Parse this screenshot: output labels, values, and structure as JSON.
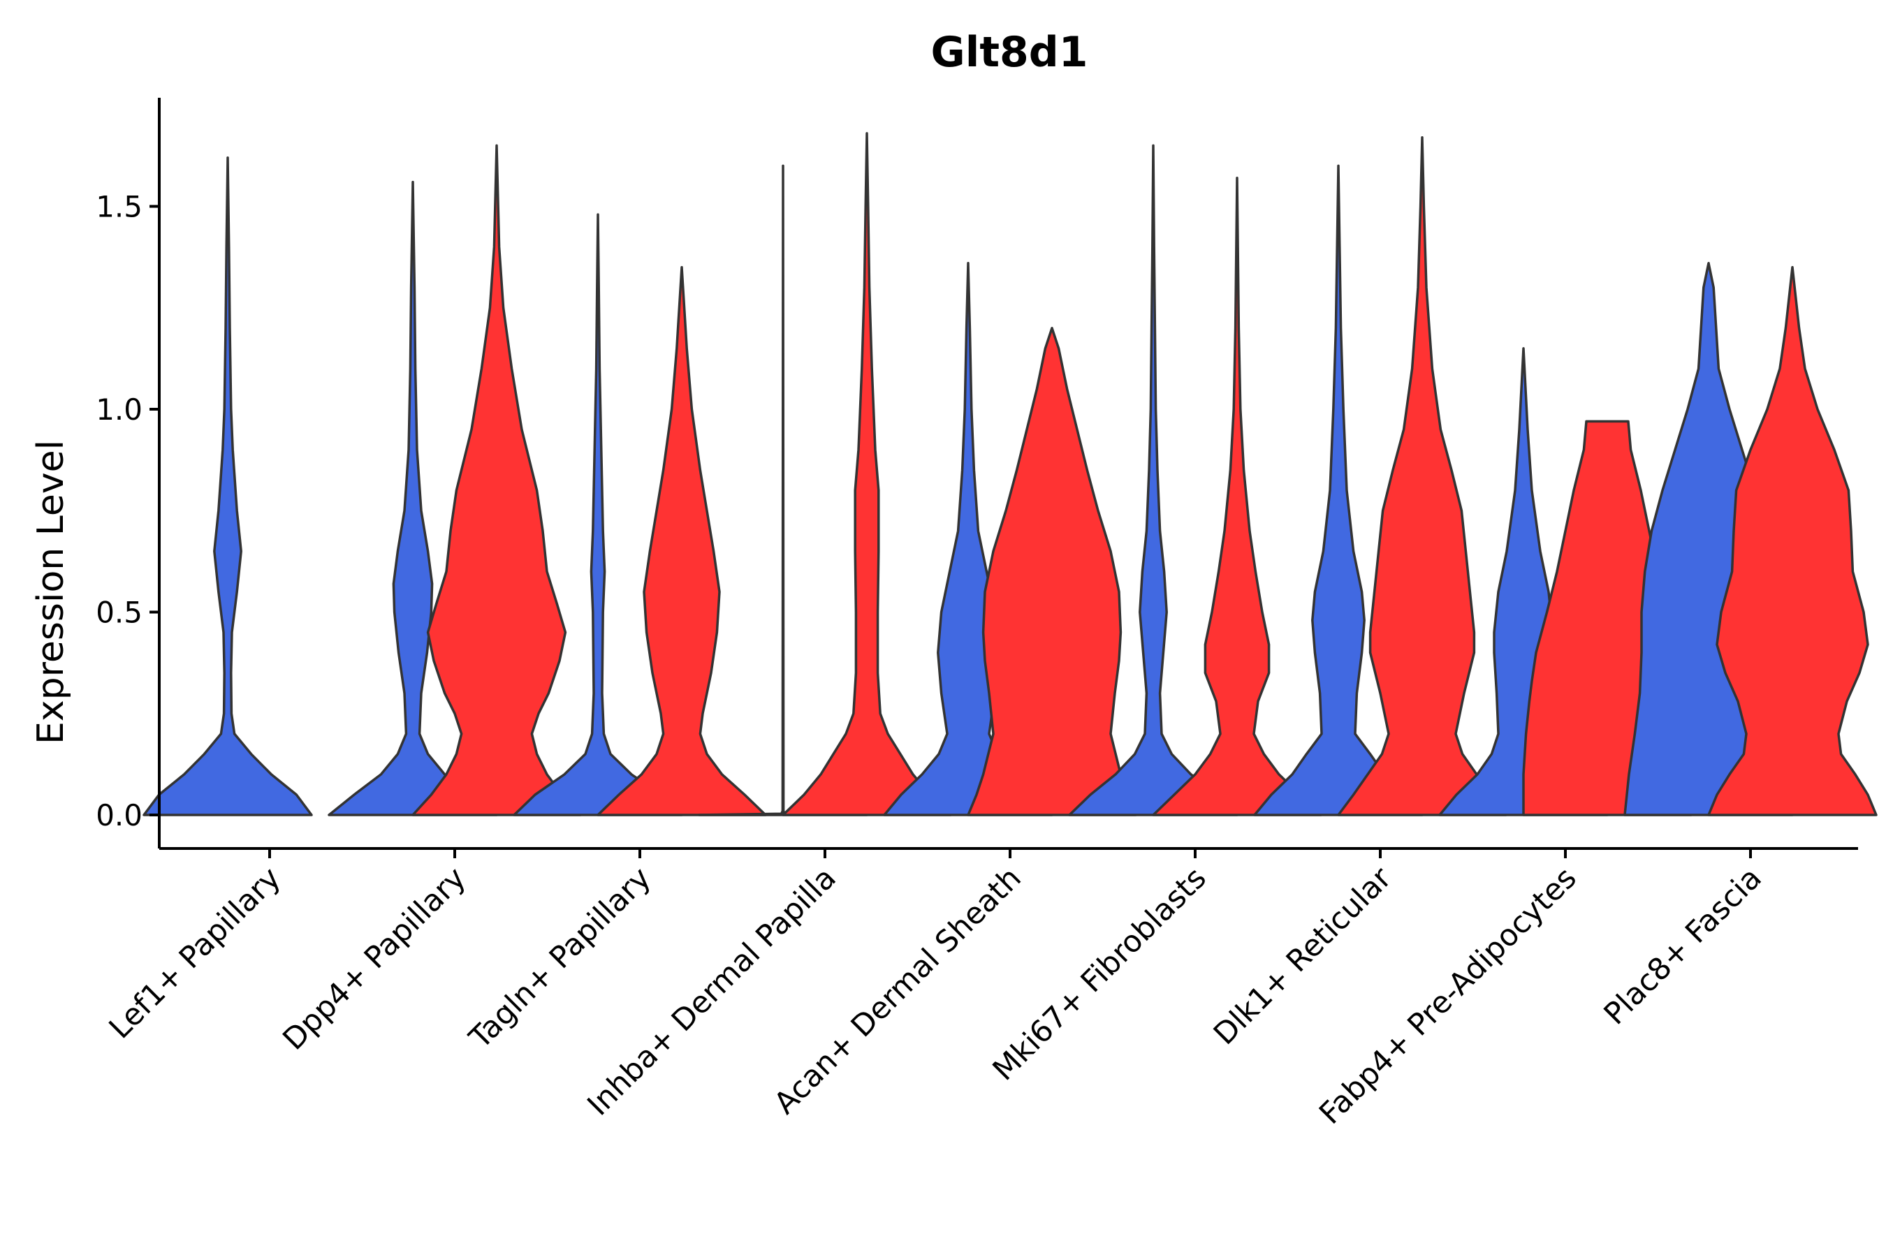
{
  "chart_data": {
    "type": "violin",
    "title": "Glt8d1",
    "xlabel": "",
    "ylabel": "Expression Level",
    "ylim": [
      -0.085,
      1.76
    ],
    "yticks": [
      0.0,
      0.5,
      1.0,
      1.5
    ],
    "ytick_labels": [
      "0.0",
      "0.5",
      "1.0",
      "1.5"
    ],
    "series_colors": {
      "group1": "#4169E1",
      "group2": "#FF3333"
    },
    "categories": [
      "Lef1+ Papillary",
      "Dpp4+ Papillary",
      "Tagln+ Papillary",
      "Inhba+ Dermal Papilla",
      "Acan+ Dermal Sheath",
      "Mki67+ Fibroblasts",
      "Dlk1+ Reticular",
      "Fabp4+ Pre-Adipocytes",
      "Plac8+ Fascia"
    ],
    "violins": [
      {
        "category": "Lef1+ Papillary",
        "group": "group1",
        "max": 1.62,
        "profile": [
          [
            0,
            1
          ],
          [
            0.05,
            0.82
          ],
          [
            0.1,
            0.52
          ],
          [
            0.15,
            0.28
          ],
          [
            0.2,
            0.08
          ],
          [
            0.25,
            0.045
          ],
          [
            0.35,
            0.04
          ],
          [
            0.45,
            0.05
          ],
          [
            0.55,
            0.11
          ],
          [
            0.65,
            0.16
          ],
          [
            0.75,
            0.11
          ],
          [
            0.9,
            0.06
          ],
          [
            1.0,
            0.04
          ],
          [
            1.2,
            0.025
          ],
          [
            1.4,
            0.015
          ],
          [
            1.62,
            0.0
          ]
        ]
      },
      {
        "category": "Dpp4+ Papillary",
        "group": "group1",
        "max": 1.56,
        "profile": [
          [
            0,
            1
          ],
          [
            0.05,
            0.7
          ],
          [
            0.1,
            0.38
          ],
          [
            0.15,
            0.18
          ],
          [
            0.2,
            0.08
          ],
          [
            0.3,
            0.1
          ],
          [
            0.4,
            0.17
          ],
          [
            0.5,
            0.22
          ],
          [
            0.57,
            0.23
          ],
          [
            0.65,
            0.18
          ],
          [
            0.75,
            0.1
          ],
          [
            0.9,
            0.05
          ],
          [
            1.1,
            0.03
          ],
          [
            1.3,
            0.02
          ],
          [
            1.56,
            0.0
          ]
        ]
      },
      {
        "category": "Dpp4+ Papillary",
        "group": "group2",
        "max": 1.65,
        "profile": [
          [
            0,
            1
          ],
          [
            0.05,
            0.78
          ],
          [
            0.1,
            0.6
          ],
          [
            0.15,
            0.48
          ],
          [
            0.2,
            0.42
          ],
          [
            0.25,
            0.5
          ],
          [
            0.3,
            0.62
          ],
          [
            0.38,
            0.75
          ],
          [
            0.45,
            0.82
          ],
          [
            0.52,
            0.72
          ],
          [
            0.6,
            0.6
          ],
          [
            0.7,
            0.55
          ],
          [
            0.8,
            0.48
          ],
          [
            0.95,
            0.3
          ],
          [
            1.1,
            0.18
          ],
          [
            1.25,
            0.08
          ],
          [
            1.4,
            0.03
          ],
          [
            1.65,
            0.0
          ]
        ]
      },
      {
        "category": "Tagln+ Papillary",
        "group": "group1",
        "max": 1.48,
        "profile": [
          [
            0,
            1
          ],
          [
            0.05,
            0.75
          ],
          [
            0.1,
            0.4
          ],
          [
            0.15,
            0.15
          ],
          [
            0.2,
            0.07
          ],
          [
            0.3,
            0.05
          ],
          [
            0.5,
            0.06
          ],
          [
            0.6,
            0.08
          ],
          [
            0.7,
            0.06
          ],
          [
            0.9,
            0.04
          ],
          [
            1.1,
            0.02
          ],
          [
            1.3,
            0.01
          ],
          [
            1.48,
            0.0
          ]
        ]
      },
      {
        "category": "Tagln+ Papillary",
        "group": "group2",
        "max": 1.35,
        "profile": [
          [
            0,
            1
          ],
          [
            0.05,
            0.75
          ],
          [
            0.1,
            0.48
          ],
          [
            0.15,
            0.3
          ],
          [
            0.2,
            0.22
          ],
          [
            0.25,
            0.25
          ],
          [
            0.35,
            0.35
          ],
          [
            0.45,
            0.42
          ],
          [
            0.55,
            0.45
          ],
          [
            0.65,
            0.38
          ],
          [
            0.75,
            0.3
          ],
          [
            0.85,
            0.22
          ],
          [
            1.0,
            0.12
          ],
          [
            1.15,
            0.06
          ],
          [
            1.35,
            0.0
          ]
        ]
      },
      {
        "category": "Inhba+ Dermal Papilla",
        "group": "group1",
        "max": 1.6,
        "profile": [
          [
            0,
            1
          ],
          [
            0.003,
            0.02
          ],
          [
            0.01,
            0.005
          ],
          [
            1.6,
            0.0
          ]
        ]
      },
      {
        "category": "Inhba+ Dermal Papilla",
        "group": "group2",
        "max": 1.68,
        "profile": [
          [
            0,
            1
          ],
          [
            0.05,
            0.75
          ],
          [
            0.1,
            0.55
          ],
          [
            0.15,
            0.4
          ],
          [
            0.2,
            0.25
          ],
          [
            0.25,
            0.16
          ],
          [
            0.35,
            0.13
          ],
          [
            0.5,
            0.13
          ],
          [
            0.65,
            0.14
          ],
          [
            0.8,
            0.14
          ],
          [
            0.9,
            0.1
          ],
          [
            1.1,
            0.06
          ],
          [
            1.3,
            0.03
          ],
          [
            1.5,
            0.015
          ],
          [
            1.68,
            0.0
          ]
        ]
      },
      {
        "category": "Acan+ Dermal Sheath",
        "group": "group1",
        "max": 1.36,
        "profile": [
          [
            0,
            1
          ],
          [
            0.05,
            0.8
          ],
          [
            0.1,
            0.55
          ],
          [
            0.15,
            0.35
          ],
          [
            0.2,
            0.25
          ],
          [
            0.3,
            0.32
          ],
          [
            0.4,
            0.36
          ],
          [
            0.5,
            0.32
          ],
          [
            0.6,
            0.22
          ],
          [
            0.7,
            0.12
          ],
          [
            0.85,
            0.07
          ],
          [
            1.0,
            0.04
          ],
          [
            1.2,
            0.02
          ],
          [
            1.36,
            0.0
          ]
        ]
      },
      {
        "category": "Acan+ Dermal Sheath",
        "group": "group2",
        "max": 1.2,
        "profile": [
          [
            0,
            1
          ],
          [
            0.05,
            0.9
          ],
          [
            0.1,
            0.82
          ],
          [
            0.2,
            0.7
          ],
          [
            0.3,
            0.75
          ],
          [
            0.38,
            0.8
          ],
          [
            0.45,
            0.82
          ],
          [
            0.55,
            0.8
          ],
          [
            0.65,
            0.7
          ],
          [
            0.75,
            0.55
          ],
          [
            0.85,
            0.42
          ],
          [
            0.95,
            0.3
          ],
          [
            1.05,
            0.18
          ],
          [
            1.15,
            0.08
          ],
          [
            1.2,
            0.0
          ]
        ]
      },
      {
        "category": "Mki67+ Fibroblasts",
        "group": "group1",
        "max": 1.65,
        "profile": [
          [
            0,
            1
          ],
          [
            0.05,
            0.75
          ],
          [
            0.1,
            0.45
          ],
          [
            0.15,
            0.22
          ],
          [
            0.2,
            0.1
          ],
          [
            0.3,
            0.08
          ],
          [
            0.4,
            0.12
          ],
          [
            0.5,
            0.16
          ],
          [
            0.6,
            0.13
          ],
          [
            0.7,
            0.08
          ],
          [
            0.85,
            0.05
          ],
          [
            1.0,
            0.03
          ],
          [
            1.2,
            0.02
          ],
          [
            1.4,
            0.01
          ],
          [
            1.65,
            0.0
          ]
        ]
      },
      {
        "category": "Mki67+ Fibroblasts",
        "group": "group2",
        "max": 1.57,
        "profile": [
          [
            0,
            1
          ],
          [
            0.05,
            0.75
          ],
          [
            0.1,
            0.5
          ],
          [
            0.15,
            0.32
          ],
          [
            0.2,
            0.2
          ],
          [
            0.28,
            0.25
          ],
          [
            0.35,
            0.38
          ],
          [
            0.42,
            0.38
          ],
          [
            0.5,
            0.3
          ],
          [
            0.6,
            0.22
          ],
          [
            0.7,
            0.15
          ],
          [
            0.85,
            0.08
          ],
          [
            1.0,
            0.04
          ],
          [
            1.2,
            0.02
          ],
          [
            1.57,
            0.0
          ]
        ]
      },
      {
        "category": "Dlk1+ Reticular",
        "group": "group1",
        "max": 1.6,
        "profile": [
          [
            0,
            1
          ],
          [
            0.05,
            0.8
          ],
          [
            0.1,
            0.55
          ],
          [
            0.15,
            0.38
          ],
          [
            0.2,
            0.2
          ],
          [
            0.3,
            0.22
          ],
          [
            0.4,
            0.28
          ],
          [
            0.48,
            0.31
          ],
          [
            0.55,
            0.28
          ],
          [
            0.65,
            0.18
          ],
          [
            0.8,
            0.1
          ],
          [
            1.0,
            0.06
          ],
          [
            1.2,
            0.03
          ],
          [
            1.4,
            0.015
          ],
          [
            1.6,
            0.0
          ]
        ]
      },
      {
        "category": "Dlk1+ Reticular",
        "group": "group2",
        "max": 1.67,
        "profile": [
          [
            0,
            1
          ],
          [
            0.05,
            0.82
          ],
          [
            0.1,
            0.65
          ],
          [
            0.15,
            0.48
          ],
          [
            0.2,
            0.4
          ],
          [
            0.3,
            0.5
          ],
          [
            0.4,
            0.62
          ],
          [
            0.45,
            0.62
          ],
          [
            0.55,
            0.57
          ],
          [
            0.65,
            0.52
          ],
          [
            0.75,
            0.47
          ],
          [
            0.85,
            0.35
          ],
          [
            0.95,
            0.22
          ],
          [
            1.1,
            0.12
          ],
          [
            1.3,
            0.05
          ],
          [
            1.5,
            0.02
          ],
          [
            1.67,
            0.0
          ]
        ]
      },
      {
        "category": "Fabp4+ Pre-Adipocytes",
        "group": "group1",
        "max": 1.15,
        "profile": [
          [
            0,
            1
          ],
          [
            0.05,
            0.8
          ],
          [
            0.1,
            0.55
          ],
          [
            0.15,
            0.38
          ],
          [
            0.2,
            0.3
          ],
          [
            0.3,
            0.32
          ],
          [
            0.4,
            0.35
          ],
          [
            0.45,
            0.35
          ],
          [
            0.55,
            0.3
          ],
          [
            0.65,
            0.2
          ],
          [
            0.8,
            0.1
          ],
          [
            0.95,
            0.05
          ],
          [
            1.15,
            0.0
          ]
        ]
      },
      {
        "category": "Fabp4+ Pre-Adipocytes",
        "group": "group2",
        "max": 0.97,
        "profile": [
          [
            0,
            1
          ],
          [
            0.1,
            1.0
          ],
          [
            0.2,
            0.97
          ],
          [
            0.28,
            0.93
          ],
          [
            0.33,
            0.9
          ],
          [
            0.4,
            0.85
          ],
          [
            0.5,
            0.72
          ],
          [
            0.6,
            0.6
          ],
          [
            0.7,
            0.5
          ],
          [
            0.8,
            0.4
          ],
          [
            0.9,
            0.28
          ],
          [
            0.97,
            0.25
          ],
          [
            0.97,
            0.0
          ]
        ]
      },
      {
        "category": "Plac8+ Fascia",
        "group": "group1",
        "max": 1.36,
        "profile": [
          [
            0,
            1
          ],
          [
            0.1,
            0.95
          ],
          [
            0.2,
            0.88
          ],
          [
            0.3,
            0.82
          ],
          [
            0.4,
            0.8
          ],
          [
            0.5,
            0.8
          ],
          [
            0.6,
            0.76
          ],
          [
            0.7,
            0.68
          ],
          [
            0.8,
            0.55
          ],
          [
            0.9,
            0.4
          ],
          [
            1.0,
            0.25
          ],
          [
            1.1,
            0.12
          ],
          [
            1.3,
            0.06
          ],
          [
            1.36,
            0.0
          ]
        ]
      },
      {
        "category": "Plac8+ Fascia",
        "group": "group2",
        "max": 1.35,
        "profile": [
          [
            0,
            1
          ],
          [
            0.05,
            0.9
          ],
          [
            0.1,
            0.75
          ],
          [
            0.15,
            0.58
          ],
          [
            0.2,
            0.55
          ],
          [
            0.28,
            0.65
          ],
          [
            0.35,
            0.8
          ],
          [
            0.42,
            0.9
          ],
          [
            0.5,
            0.85
          ],
          [
            0.6,
            0.72
          ],
          [
            0.7,
            0.7
          ],
          [
            0.8,
            0.67
          ],
          [
            0.9,
            0.5
          ],
          [
            1.0,
            0.3
          ],
          [
            1.1,
            0.15
          ],
          [
            1.2,
            0.08
          ],
          [
            1.35,
            0.0
          ]
        ]
      }
    ]
  }
}
